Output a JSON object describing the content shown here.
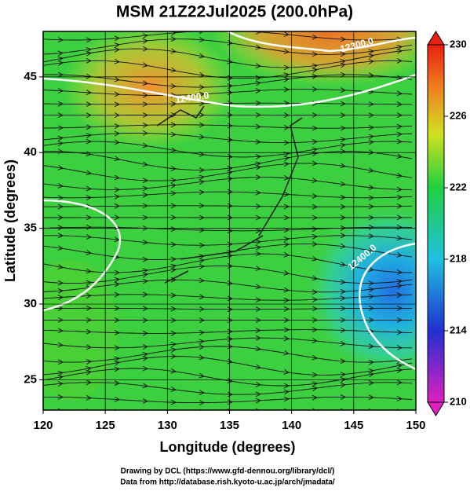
{
  "title": "MSM 21Z22Jul2025 (200.0hPa)",
  "x_axis": {
    "label": "Longitude (degrees)",
    "range": [
      120,
      150
    ],
    "ticks": [
      120,
      125,
      130,
      135,
      140,
      145,
      150
    ]
  },
  "y_axis": {
    "label": "Latitude  (degrees)",
    "range": [
      23,
      48
    ],
    "ticks": [
      25,
      30,
      35,
      40,
      45
    ]
  },
  "colorbar": {
    "range": [
      210,
      230
    ],
    "ticks": [
      210,
      214,
      218,
      222,
      226,
      230
    ]
  },
  "contour_labels": [
    "12400.0",
    "12300.0",
    "12400.0"
  ],
  "footer": [
    "Drawing by DCL (https://www.gfd-dennou.org/library/dcl/)",
    "Data from http://database.rish.kyoto-u.ac.jp/arch/jmadata/"
  ]
}
